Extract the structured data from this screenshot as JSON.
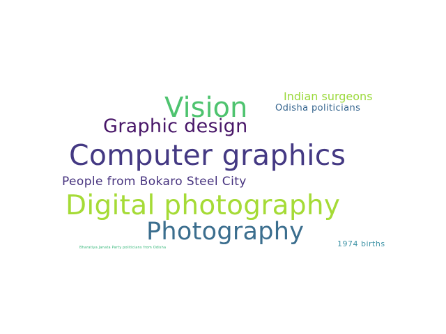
{
  "words": [
    {
      "text": "Vision",
      "color": "#4ec36f"
    },
    {
      "text": "Indian surgeons",
      "color": "#9bd93c"
    },
    {
      "text": "Odisha politicians",
      "color": "#33638d"
    },
    {
      "text": "Graphic design",
      "color": "#481668"
    },
    {
      "text": "Computer graphics",
      "color": "#443983"
    },
    {
      "text": "People from Bokaro Steel City",
      "color": "#46327e"
    },
    {
      "text": "Digital photography",
      "color": "#a5db36"
    },
    {
      "text": "Photography",
      "color": "#3b6e8e"
    },
    {
      "text": "1974 births",
      "color": "#3e93a6"
    },
    {
      "text": "Bharatiya Janata Party politicians from Odisha",
      "color": "#35b779"
    }
  ]
}
